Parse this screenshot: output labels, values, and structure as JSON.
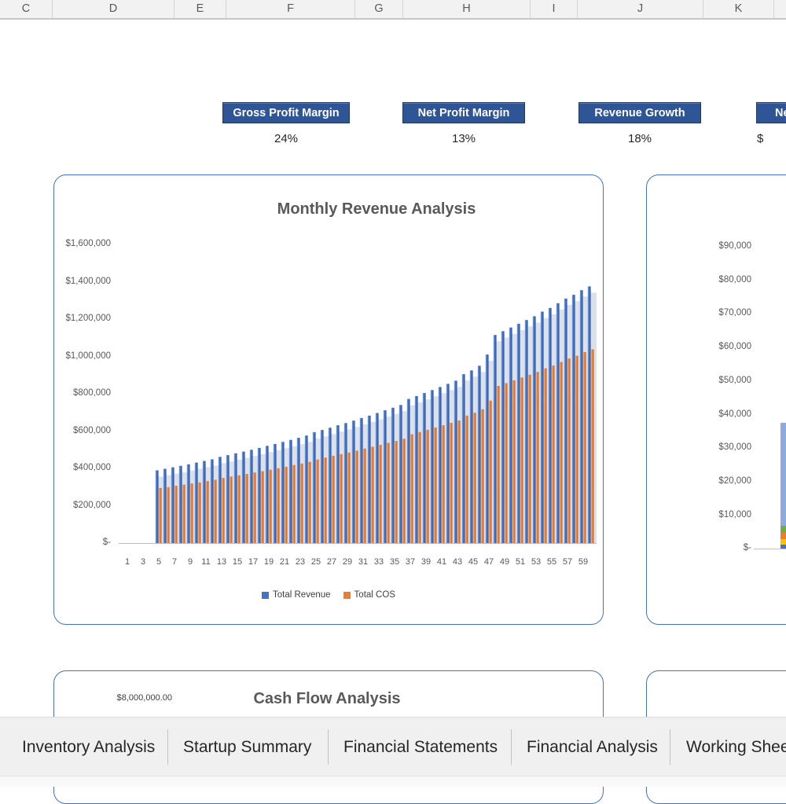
{
  "spreadsheet": {
    "column_headers": [
      "C",
      "D",
      "E",
      "F",
      "G",
      "H",
      "I",
      "J",
      "K"
    ]
  },
  "kpis": [
    {
      "label": "Gross Profit Margin",
      "value": "24%"
    },
    {
      "label": "Net Profit Margin",
      "value": "13%"
    },
    {
      "label": "Revenue Growth",
      "value": "18%"
    },
    {
      "label": "Ne",
      "value": "$"
    }
  ],
  "sheet_tabs": [
    {
      "label": "Inventory Analysis"
    },
    {
      "label": "Startup Summary"
    },
    {
      "label": "Financial Statements"
    },
    {
      "label": "Financial Analysis"
    },
    {
      "label": "Working Shee"
    }
  ],
  "colors": {
    "kpi_badge": "#2F5597",
    "panel_border": "#4472C4",
    "revenue_bar": "#4472C4",
    "cos_bar": "#ED7D31",
    "bar_shadow": "#DCE1E9",
    "light_blue_bar": "#8FAADC",
    "green_bar": "#70AD47",
    "orange_bar": "#ED7D31",
    "yellow_bar": "#FFC000",
    "title_gray": "#595959"
  },
  "chart_data": [
    {
      "type": "bar",
      "title": "Monthly Revenue Analysis",
      "xlabel": "",
      "ylabel": "",
      "ylim": [
        0,
        1600000
      ],
      "grid": false,
      "legend_position": "bottom",
      "y_ticks": [
        "$1,600,000",
        "$1,400,000",
        "$1,200,000",
        "$1,000,000",
        "$800,000",
        "$600,000",
        "$400,000",
        "$200,000",
        "$-"
      ],
      "x_tick_labels": [
        "1",
        "3",
        "5",
        "7",
        "9",
        "11",
        "13",
        "15",
        "17",
        "19",
        "21",
        "23",
        "25",
        "27",
        "29",
        "31",
        "33",
        "35",
        "37",
        "39",
        "41",
        "43",
        "45",
        "47",
        "49",
        "51",
        "53",
        "55",
        "57",
        "59"
      ],
      "categories": [
        1,
        2,
        3,
        4,
        5,
        6,
        7,
        8,
        9,
        10,
        11,
        12,
        13,
        14,
        15,
        16,
        17,
        18,
        19,
        20,
        21,
        22,
        23,
        24,
        25,
        26,
        27,
        28,
        29,
        30,
        31,
        32,
        33,
        34,
        35,
        36,
        37,
        38,
        39,
        40,
        41,
        42,
        43,
        44,
        45,
        46,
        47,
        48,
        49,
        50,
        51,
        52,
        53,
        54,
        55,
        56,
        57,
        58,
        59,
        60
      ],
      "series": [
        {
          "name": "Total Revenue",
          "color": "#4472C4",
          "values": [
            0,
            0,
            0,
            0,
            390000,
            398000,
            406000,
            414000,
            422000,
            431000,
            440000,
            449000,
            462000,
            471000,
            481000,
            490000,
            500000,
            510000,
            521000,
            531000,
            542000,
            553000,
            564000,
            576000,
            594000,
            606000,
            618000,
            631000,
            643000,
            656000,
            670000,
            683000,
            697000,
            711000,
            725000,
            740000,
            772000,
            788000,
            804000,
            820000,
            836000,
            853000,
            870000,
            905000,
            925000,
            950000,
            1010000,
            1115000,
            1135000,
            1155000,
            1175000,
            1195000,
            1215000,
            1240000,
            1260000,
            1285000,
            1310000,
            1330000,
            1355000,
            1375000
          ]
        },
        {
          "name": "Total COS",
          "color": "#ED7D31",
          "values": [
            0,
            0,
            0,
            0,
            295000,
            300000,
            307000,
            313000,
            319000,
            325000,
            332000,
            339000,
            349000,
            356000,
            363000,
            370000,
            378000,
            385000,
            393000,
            401000,
            409000,
            418000,
            426000,
            435000,
            448000,
            458000,
            467000,
            476000,
            485000,
            495000,
            506000,
            516000,
            526000,
            537000,
            547000,
            559000,
            583000,
            595000,
            607000,
            619000,
            631000,
            644000,
            657000,
            683000,
            698000,
            717000,
            763000,
            842000,
            857000,
            872000,
            887000,
            902000,
            917000,
            936000,
            951000,
            970000,
            989000,
            1004000,
            1023000,
            1038000
          ]
        }
      ]
    },
    {
      "type": "bar",
      "title": "",
      "ylim": [
        0,
        90000
      ],
      "y_ticks": [
        "$90,000",
        "$80,000",
        "$70,000",
        "$60,000",
        "$50,000",
        "$40,000",
        "$30,000",
        "$20,000",
        "$10,000",
        "$-"
      ],
      "visible_stacked_bar": {
        "total": 37500,
        "segments_bottom_to_top": [
          {
            "name": "dark-blue-segment",
            "color": "#4472C4",
            "value": 1200
          },
          {
            "name": "yellow-segment",
            "color": "#FFC000",
            "value": 1600
          },
          {
            "name": "orange-segment",
            "color": "#ED7D31",
            "value": 1900
          },
          {
            "name": "green-segment",
            "color": "#70AD47",
            "value": 2100
          },
          {
            "name": "light-blue-segment",
            "color": "#8FAADC",
            "value": 30700
          }
        ]
      }
    },
    {
      "type": "line",
      "title": "Cash Flow Analysis",
      "y_ticks": [
        "$8,000,000.00"
      ]
    }
  ]
}
